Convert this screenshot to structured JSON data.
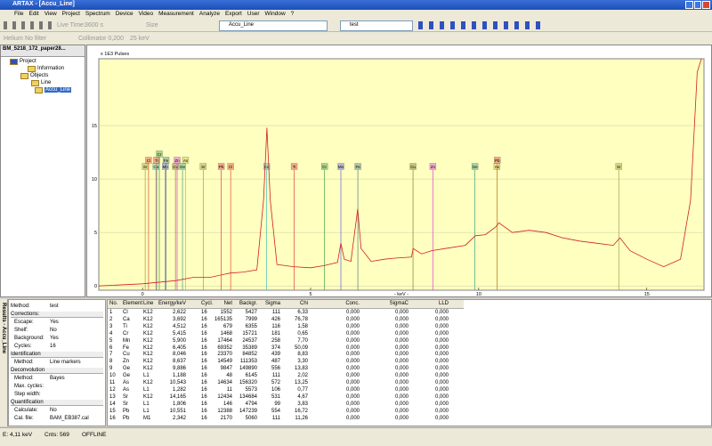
{
  "window_title": "ARTAX - [Accu_Line]",
  "menu": [
    "File",
    "Edit",
    "View",
    "Project",
    "Spectrum",
    "Device",
    "Video",
    "Measurement",
    "Analyze",
    "Export",
    "User",
    "Window",
    "?"
  ],
  "toolbar": {
    "live_time": "Live Time:",
    "live_time_value": "3600 s",
    "size": "Size",
    "spectrum": "Accu_Line",
    "method": "test"
  },
  "toolbar2": [
    "Helium",
    "No filter",
    "Collimator 0,200",
    "25 keV"
  ],
  "tree": {
    "title": "BM_5218_172_paper28...",
    "items": [
      "Project",
      "Information",
      "Objects",
      "Line",
      "Accu_Line"
    ]
  },
  "chart_data": {
    "type": "line",
    "y_label": "x 1E3 Pulses",
    "x_label": "- keV -",
    "xlim": [
      -1.3,
      16.7
    ],
    "ylim": [
      -0.4,
      21.25
    ],
    "xticks": [
      0,
      5,
      10,
      15
    ],
    "yticks": [
      0,
      5,
      10,
      15
    ],
    "x": [
      -1.3,
      0,
      1,
      1.5,
      2,
      2.6,
      3,
      3.4,
      3.6,
      3.7,
      3.8,
      4.0,
      4.5,
      5,
      5.4,
      5.8,
      5.9,
      6.0,
      6.2,
      6.4,
      6.5,
      6.8,
      7.2,
      7.5,
      8.0,
      8.05,
      8.3,
      8.6,
      9,
      9.6,
      9.9,
      10.2,
      10.5,
      10.6,
      11,
      11.5,
      12,
      12.5,
      13,
      13.5,
      14,
      14.2,
      14.5,
      15,
      15.5,
      16,
      16.3,
      16.5,
      16.7
    ],
    "series": [
      {
        "color": "#d02020",
        "values": [
          0,
          0.2,
          0.5,
          0.8,
          0.8,
          1.2,
          1.3,
          1.5,
          8,
          14.8,
          8,
          2.0,
          1.8,
          1.7,
          1.9,
          2.2,
          4,
          2.5,
          2.3,
          7.2,
          3.5,
          2.3,
          2.5,
          2.6,
          2.7,
          3.5,
          3.0,
          3.3,
          3.5,
          3.8,
          4.7,
          4.8,
          5.5,
          5.9,
          5.0,
          5.2,
          5.0,
          4.5,
          4.2,
          4.0,
          3.8,
          4.5,
          3.3,
          2.5,
          1.8,
          2.5,
          8,
          20,
          22
        ]
      }
    ],
    "markers": [
      {
        "label": "Sr",
        "energy": 0.08,
        "row": 2,
        "color": "#a0a040"
      },
      {
        "label": "Cl",
        "energy": 0.18,
        "row": 1,
        "color": "#e05030"
      },
      {
        "label": "Ca",
        "energy": 0.4,
        "row": 2,
        "color": "#40c0c0"
      },
      {
        "label": "Ti",
        "energy": 0.42,
        "row": 1,
        "color": "#e04040"
      },
      {
        "label": "Cr",
        "energy": 0.5,
        "row": 0,
        "color": "#40a040"
      },
      {
        "label": "Mn",
        "energy": 0.68,
        "row": 2,
        "color": "#6060e0"
      },
      {
        "label": "Fe",
        "energy": 0.7,
        "row": 1,
        "color": "#508080"
      },
      {
        "label": "Cu",
        "energy": 0.98,
        "row": 2,
        "color": "#808030"
      },
      {
        "label": "Zn",
        "energy": 1.03,
        "row": 1,
        "color": "#e040e0"
      },
      {
        "label": "Ge",
        "energy": 1.19,
        "row": 2,
        "color": "#40a080"
      },
      {
        "label": "As",
        "energy": 1.28,
        "row": 1,
        "color": "#c0c040"
      },
      {
        "label": "Sr",
        "energy": 1.806,
        "row": 2,
        "color": "#a0a040"
      },
      {
        "label": "Pb",
        "energy": 2.342,
        "row": 2,
        "color": "#e04040"
      },
      {
        "label": "Cl",
        "energy": 2.622,
        "row": 2,
        "color": "#e05030"
      },
      {
        "label": "Ca",
        "energy": 3.692,
        "row": 2,
        "color": "#40c0c0"
      },
      {
        "label": "Ti",
        "energy": 4.512,
        "row": 2,
        "color": "#e04040"
      },
      {
        "label": "Cr",
        "energy": 5.415,
        "row": 2,
        "color": "#40a040"
      },
      {
        "label": "Mn",
        "energy": 5.9,
        "row": 2,
        "color": "#6060e0"
      },
      {
        "label": "Fe",
        "energy": 6.405,
        "row": 2,
        "color": "#508080"
      },
      {
        "label": "Cu",
        "energy": 8.046,
        "row": 2,
        "color": "#808030"
      },
      {
        "label": "Zn",
        "energy": 8.637,
        "row": 2,
        "color": "#e040e0"
      },
      {
        "label": "Ge",
        "energy": 9.886,
        "row": 2,
        "color": "#40a080"
      },
      {
        "label": "Pb",
        "energy": 10.551,
        "row": 1,
        "color": "#e04040"
      },
      {
        "label": "As",
        "energy": 10.543,
        "row": 2,
        "color": "#c0c040"
      },
      {
        "label": "Sr",
        "energy": 14.165,
        "row": 2,
        "color": "#a0a040"
      }
    ]
  },
  "side_tab": "Results - Accu_Line",
  "method_panel": [
    {
      "label": "Method:",
      "value": "test"
    },
    {
      "header": "Corrections:"
    },
    {
      "label": "Escape:",
      "value": "Yes"
    },
    {
      "label": "Shelf:",
      "value": "No"
    },
    {
      "label": "Background:",
      "value": "Yes"
    },
    {
      "label": "Cycles:",
      "value": "16"
    },
    {
      "header": "Identification"
    },
    {
      "label": "Method:",
      "value": "Line markers"
    },
    {
      "header": "Deconvolution"
    },
    {
      "label": "Method:",
      "value": "Bayes"
    },
    {
      "label": "Max. cycles:"
    },
    {
      "label": "Step width:"
    },
    {
      "header": "Quantification"
    },
    {
      "label": "Calculate:",
      "value": "No"
    },
    {
      "label": "Cal. file:",
      "value": "BAM_EB387.cal"
    }
  ],
  "table": {
    "columns": [
      "No.",
      "Element",
      "Line",
      "Energy/keV",
      "Cycl.",
      "Net",
      "Backgr.",
      "Sigma",
      "Chi",
      "Conc.",
      "SigmaC",
      "LLD"
    ],
    "rows": [
      [
        "1",
        "Cl",
        "K12",
        "2,622",
        "16",
        "1552",
        "5427",
        "111",
        "6,33",
        "0,000",
        "0,000",
        "0,000"
      ],
      [
        "2",
        "Ca",
        "K12",
        "3,692",
        "16",
        "165135",
        "7999",
        "426",
        "76,78",
        "0,000",
        "0,000",
        "0,000"
      ],
      [
        "3",
        "Ti",
        "K12",
        "4,512",
        "16",
        "679",
        "6355",
        "116",
        "1,58",
        "0,000",
        "0,000",
        "0,000"
      ],
      [
        "4",
        "Cr",
        "K12",
        "5,415",
        "16",
        "1468",
        "15721",
        "181",
        "0,65",
        "0,000",
        "0,000",
        "0,000"
      ],
      [
        "5",
        "Mn",
        "K12",
        "5,900",
        "16",
        "17464",
        "24537",
        "258",
        "7,70",
        "0,000",
        "0,000",
        "0,000"
      ],
      [
        "6",
        "Fe",
        "K12",
        "6,405",
        "16",
        "69352",
        "35389",
        "374",
        "50,09",
        "0,000",
        "0,000",
        "0,000"
      ],
      [
        "7",
        "Cu",
        "K12",
        "8,046",
        "16",
        "23370",
        "84852",
        "439",
        "8,83",
        "0,000",
        "0,000",
        "0,000"
      ],
      [
        "8",
        "Zn",
        "K12",
        "8,637",
        "16",
        "14549",
        "111353",
        "487",
        "3,30",
        "0,000",
        "0,000",
        "0,000"
      ],
      [
        "9",
        "Ge",
        "K12",
        "9,886",
        "16",
        "9847",
        "149890",
        "556",
        "13,83",
        "0,000",
        "0,000",
        "0,000"
      ],
      [
        "10",
        "Ge",
        "L1",
        "1,188",
        "16",
        "48",
        "6145",
        "111",
        "2,02",
        "0,000",
        "0,000",
        "0,000"
      ],
      [
        "11",
        "As",
        "K12",
        "10,543",
        "16",
        "14634",
        "156320",
        "572",
        "13,25",
        "0,000",
        "0,000",
        "0,000"
      ],
      [
        "12",
        "As",
        "L1",
        "1,282",
        "16",
        "11",
        "5573",
        "106",
        "0,77",
        "0,000",
        "0,000",
        "0,000"
      ],
      [
        "13",
        "Sr",
        "K12",
        "14,165",
        "16",
        "12434",
        "134684",
        "531",
        "4,67",
        "0,000",
        "0,000",
        "0,000"
      ],
      [
        "14",
        "Sr",
        "L1",
        "1,806",
        "16",
        "146",
        "4794",
        "99",
        "3,83",
        "0,000",
        "0,000",
        "0,000"
      ],
      [
        "15",
        "Pb",
        "L1",
        "10,551",
        "16",
        "12388",
        "147239",
        "554",
        "16,72",
        "0,000",
        "0,000",
        "0,000"
      ],
      [
        "16",
        "Pb",
        "M1",
        "2,342",
        "16",
        "2170",
        "5060",
        "111",
        "11,26",
        "0,000",
        "0,000",
        "0,000"
      ]
    ]
  },
  "status": [
    "E: 4,11 keV",
    "Cnts: 569",
    "OFFLINE"
  ]
}
